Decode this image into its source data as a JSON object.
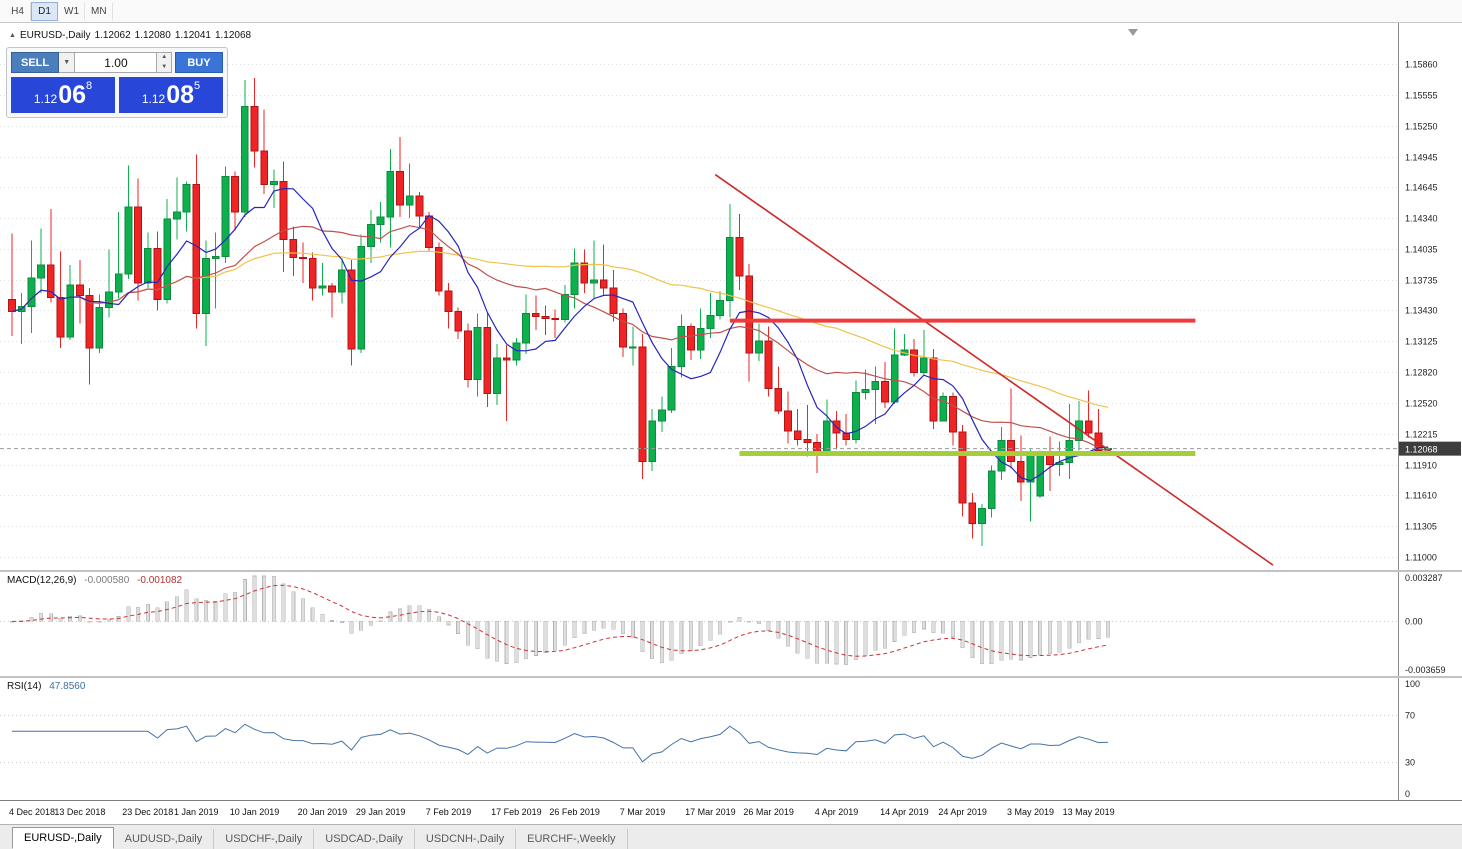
{
  "toolbar": {
    "timeframes": [
      {
        "label": "H4",
        "active": false
      },
      {
        "label": "D1",
        "active": true
      },
      {
        "label": "W1",
        "active": false
      },
      {
        "label": "MN",
        "active": false
      }
    ]
  },
  "icons": {
    "expand": "▲",
    "dropdown": "▼",
    "spin_up": "▲",
    "spin_down": "▼"
  },
  "chart_header": {
    "title": "EURUSD-,Daily",
    "open": "1.12062",
    "high": "1.12080",
    "low": "1.12041",
    "close": "1.12068"
  },
  "trade_panel": {
    "sell_label": "SELL",
    "buy_label": "BUY",
    "volume": "1.00",
    "sell_price": {
      "prefix": "1.12",
      "big": "06",
      "sup": "8"
    },
    "buy_price": {
      "prefix": "1.12",
      "big": "08",
      "sup": "5"
    }
  },
  "price_axis": {
    "current": "1.12068"
  },
  "macd": {
    "label": "MACD(12,26,9)",
    "main_value": "-0.000580",
    "signal_value": "-0.001082",
    "params": {
      "fast": 12,
      "slow": 26,
      "signal": 9
    },
    "axis": {
      "max": "0.003287",
      "zero": "0.00",
      "min": "-0.003659"
    },
    "histogram_color": "#dedede",
    "signal_color": "#cc3333"
  },
  "rsi": {
    "label": "RSI(14)",
    "value": "47.8560",
    "period": 14,
    "axis_labels": [
      "100",
      "70",
      "30",
      "0"
    ],
    "levels": [
      70,
      30
    ],
    "line_color": "#4572a7"
  },
  "bottom_tabs": [
    {
      "label": "EURUSD-,Daily",
      "active": true
    },
    {
      "label": "AUDUSD-,Daily",
      "active": false
    },
    {
      "label": "USDCHF-,Daily",
      "active": false
    },
    {
      "label": "USDCAD-,Daily",
      "active": false
    },
    {
      "label": "USDCNH-,Daily",
      "active": false
    },
    {
      "label": "EURCHF-,Weekly",
      "active": false
    }
  ],
  "ui_colors": {
    "sell_button": "#4a7ebd",
    "buy_button": "#3a74d6",
    "price_box": "#2847d8",
    "timeframe_active": "#dbe7f7",
    "badge": "#3d3d3d"
  },
  "chart_data": {
    "type": "candlestick",
    "symbol": "EURUSD-",
    "timeframe": "Daily",
    "current_price": 1.12068,
    "y_ticks": [
      "1.15860",
      "1.15555",
      "1.15250",
      "1.14945",
      "1.14645",
      "1.14340",
      "1.14035",
      "1.13735",
      "1.13430",
      "1.13125",
      "1.12820",
      "1.12520",
      "1.12215",
      "1.11910",
      "1.11610",
      "1.11305",
      "1.11000"
    ],
    "x_ticks": [
      {
        "label": "4 Dec 2018",
        "index": 0
      },
      {
        "label": "13 Dec 2018",
        "index": 7
      },
      {
        "label": "23 Dec 2018",
        "index": 14
      },
      {
        "label": "1 Jan 2019",
        "index": 19
      },
      {
        "label": "10 Jan 2019",
        "index": 25
      },
      {
        "label": "20 Jan 2019",
        "index": 32
      },
      {
        "label": "29 Jan 2019",
        "index": 38
      },
      {
        "label": "7 Feb 2019",
        "index": 45
      },
      {
        "label": "17 Feb 2019",
        "index": 52
      },
      {
        "label": "26 Feb 2019",
        "index": 58
      },
      {
        "label": "7 Mar 2019",
        "index": 65
      },
      {
        "label": "17 Mar 2019",
        "index": 72
      },
      {
        "label": "26 Mar 2019",
        "index": 78
      },
      {
        "label": "4 Apr 2019",
        "index": 85
      },
      {
        "label": "14 Apr 2019",
        "index": 92
      },
      {
        "label": "24 Apr 2019",
        "index": 98
      },
      {
        "label": "3 May 2019",
        "index": 105
      },
      {
        "label": "13 May 2019",
        "index": 111
      }
    ],
    "candles": [
      [
        1.1354,
        1.1419,
        1.1318,
        1.1342
      ],
      [
        1.1342,
        1.136,
        1.131,
        1.1347
      ],
      [
        1.1347,
        1.1412,
        1.1321,
        1.1375
      ],
      [
        1.1375,
        1.1424,
        1.136,
        1.1388
      ],
      [
        1.1388,
        1.1443,
        1.1351,
        1.1356
      ],
      [
        1.1356,
        1.1401,
        1.1306,
        1.1317
      ],
      [
        1.1317,
        1.1388,
        1.1314,
        1.1368
      ],
      [
        1.1368,
        1.1393,
        1.133,
        1.1358
      ],
      [
        1.1358,
        1.1365,
        1.127,
        1.1306
      ],
      [
        1.1306,
        1.1359,
        1.1301,
        1.1346
      ],
      [
        1.1346,
        1.1403,
        1.1336,
        1.1361
      ],
      [
        1.1361,
        1.144,
        1.1355,
        1.1379
      ],
      [
        1.1379,
        1.1486,
        1.1374,
        1.1445
      ],
      [
        1.1445,
        1.1473,
        1.1353,
        1.137
      ],
      [
        1.137,
        1.142,
        1.1365,
        1.1404
      ],
      [
        1.1404,
        1.1421,
        1.1343,
        1.1354
      ],
      [
        1.1354,
        1.1453,
        1.135,
        1.1433
      ],
      [
        1.1433,
        1.1474,
        1.1413,
        1.144
      ],
      [
        1.144,
        1.147,
        1.1421,
        1.1467
      ],
      [
        1.1467,
        1.1497,
        1.1325,
        1.134
      ],
      [
        1.134,
        1.1412,
        1.1308,
        1.1394
      ],
      [
        1.1394,
        1.142,
        1.1345,
        1.1396
      ],
      [
        1.1396,
        1.1485,
        1.139,
        1.1475
      ],
      [
        1.1475,
        1.148,
        1.1422,
        1.144
      ],
      [
        1.144,
        1.157,
        1.1435,
        1.1544
      ],
      [
        1.1544,
        1.1572,
        1.1484,
        1.15
      ],
      [
        1.15,
        1.1541,
        1.1458,
        1.1467
      ],
      [
        1.1467,
        1.1482,
        1.1444,
        1.147
      ],
      [
        1.147,
        1.149,
        1.1381,
        1.1413
      ],
      [
        1.1413,
        1.1426,
        1.1377,
        1.1395
      ],
      [
        1.1395,
        1.141,
        1.137,
        1.1394
      ],
      [
        1.1394,
        1.14,
        1.1353,
        1.1365
      ],
      [
        1.1365,
        1.139,
        1.1358,
        1.1367
      ],
      [
        1.1367,
        1.137,
        1.1336,
        1.1361
      ],
      [
        1.1361,
        1.1394,
        1.135,
        1.1383
      ],
      [
        1.1383,
        1.1393,
        1.1289,
        1.1305
      ],
      [
        1.1305,
        1.1418,
        1.1301,
        1.1406
      ],
      [
        1.1406,
        1.1442,
        1.139,
        1.1428
      ],
      [
        1.1428,
        1.145,
        1.141,
        1.1435
      ],
      [
        1.1435,
        1.1502,
        1.1405,
        1.148
      ],
      [
        1.148,
        1.1514,
        1.1435,
        1.1447
      ],
      [
        1.1447,
        1.1488,
        1.1434,
        1.1456
      ],
      [
        1.1456,
        1.146,
        1.1425,
        1.1436
      ],
      [
        1.1436,
        1.144,
        1.1402,
        1.1405
      ],
      [
        1.1405,
        1.141,
        1.1358,
        1.1362
      ],
      [
        1.1362,
        1.137,
        1.1325,
        1.1342
      ],
      [
        1.1342,
        1.1346,
        1.1315,
        1.1323
      ],
      [
        1.1323,
        1.133,
        1.1267,
        1.1275
      ],
      [
        1.1275,
        1.134,
        1.1258,
        1.1326
      ],
      [
        1.1326,
        1.1341,
        1.1248,
        1.1261
      ],
      [
        1.1261,
        1.131,
        1.125,
        1.1296
      ],
      [
        1.1296,
        1.1309,
        1.1234,
        1.1294
      ],
      [
        1.1294,
        1.1316,
        1.1289,
        1.1311
      ],
      [
        1.1311,
        1.1359,
        1.13,
        1.134
      ],
      [
        1.134,
        1.1358,
        1.1324,
        1.1337
      ],
      [
        1.1337,
        1.1348,
        1.1319,
        1.1335
      ],
      [
        1.1335,
        1.1344,
        1.1316,
        1.1334
      ],
      [
        1.1334,
        1.1368,
        1.1331,
        1.1359
      ],
      [
        1.1359,
        1.1404,
        1.1345,
        1.139
      ],
      [
        1.139,
        1.1403,
        1.136,
        1.137
      ],
      [
        1.137,
        1.1412,
        1.1355,
        1.1373
      ],
      [
        1.1373,
        1.1408,
        1.1358,
        1.1365
      ],
      [
        1.1365,
        1.1383,
        1.1332,
        1.134
      ],
      [
        1.134,
        1.1345,
        1.1297,
        1.1307
      ],
      [
        1.1307,
        1.1327,
        1.1289,
        1.1307
      ],
      [
        1.1307,
        1.132,
        1.1177,
        1.1194
      ],
      [
        1.1194,
        1.1246,
        1.1185,
        1.1234
      ],
      [
        1.1234,
        1.1258,
        1.1223,
        1.1245
      ],
      [
        1.1245,
        1.1306,
        1.1242,
        1.1288
      ],
      [
        1.1288,
        1.1339,
        1.1277,
        1.1327
      ],
      [
        1.1327,
        1.133,
        1.1294,
        1.1304
      ],
      [
        1.1304,
        1.1345,
        1.1295,
        1.1325
      ],
      [
        1.1325,
        1.136,
        1.1316,
        1.1338
      ],
      [
        1.1338,
        1.1362,
        1.1334,
        1.1353
      ],
      [
        1.1353,
        1.1448,
        1.1336,
        1.1415
      ],
      [
        1.1415,
        1.1438,
        1.1363,
        1.1377
      ],
      [
        1.1377,
        1.1389,
        1.1273,
        1.1301
      ],
      [
        1.1301,
        1.133,
        1.1293,
        1.1313
      ],
      [
        1.1313,
        1.1327,
        1.1258,
        1.1266
      ],
      [
        1.1266,
        1.1288,
        1.1241,
        1.1244
      ],
      [
        1.1244,
        1.1263,
        1.1212,
        1.1224
      ],
      [
        1.1224,
        1.1246,
        1.121,
        1.1216
      ],
      [
        1.1216,
        1.125,
        1.1199,
        1.1213
      ],
      [
        1.1213,
        1.1221,
        1.1183,
        1.1203
      ],
      [
        1.1203,
        1.1255,
        1.12,
        1.1234
      ],
      [
        1.1234,
        1.1244,
        1.1206,
        1.1222
      ],
      [
        1.1222,
        1.1241,
        1.121,
        1.1216
      ],
      [
        1.1216,
        1.1274,
        1.1212,
        1.1262
      ],
      [
        1.1262,
        1.1285,
        1.1255,
        1.1265
      ],
      [
        1.1265,
        1.1288,
        1.1231,
        1.1273
      ],
      [
        1.1273,
        1.1292,
        1.1247,
        1.1253
      ],
      [
        1.1253,
        1.1325,
        1.1251,
        1.1299
      ],
      [
        1.1299,
        1.132,
        1.1298,
        1.1304
      ],
      [
        1.1304,
        1.1315,
        1.1278,
        1.1282
      ],
      [
        1.1282,
        1.1324,
        1.128,
        1.1296
      ],
      [
        1.1296,
        1.1305,
        1.1226,
        1.1234
      ],
      [
        1.1234,
        1.1262,
        1.1234,
        1.1258
      ],
      [
        1.1258,
        1.1262,
        1.121,
        1.1223
      ],
      [
        1.1223,
        1.123,
        1.114,
        1.1153
      ],
      [
        1.1153,
        1.1163,
        1.1118,
        1.1133
      ],
      [
        1.1133,
        1.1152,
        1.1111,
        1.1148
      ],
      [
        1.1148,
        1.119,
        1.1139,
        1.1185
      ],
      [
        1.1185,
        1.1228,
        1.1176,
        1.1215
      ],
      [
        1.1215,
        1.1266,
        1.1187,
        1.1194
      ],
      [
        1.1194,
        1.122,
        1.1155,
        1.1174
      ],
      [
        1.1174,
        1.1206,
        1.1135,
        1.12
      ],
      [
        1.116,
        1.1205,
        1.1158,
        1.12
      ],
      [
        1.12,
        1.1219,
        1.1165,
        1.1191
      ],
      [
        1.1191,
        1.1214,
        1.118,
        1.1193
      ],
      [
        1.1193,
        1.1251,
        1.1177,
        1.1215
      ],
      [
        1.1215,
        1.1254,
        1.1205,
        1.1234
      ],
      [
        1.1234,
        1.1264,
        1.1218,
        1.1222
      ],
      [
        1.1222,
        1.1246,
        1.1201,
        1.1205
      ],
      [
        1.12062,
        1.1208,
        1.12041,
        1.12068
      ]
    ],
    "moving_averages": [
      {
        "period": 8,
        "color": "#2626bd"
      },
      {
        "period": 20,
        "color": "#c0504d"
      },
      {
        "period": 50,
        "color": "#f0c24b"
      }
    ],
    "trendline": {
      "from_index": 72.5,
      "from_price": 1.1477,
      "to_index": 130,
      "to_price": 1.1092,
      "color": "#d02828"
    },
    "resistance": {
      "price": 1.1333,
      "from_index": 74,
      "to_index": 122,
      "color": "#ef3b3b"
    },
    "support": {
      "price": 1.1202,
      "from_index": 75,
      "to_index": 122,
      "color": "#a6ce39"
    },
    "colors": {
      "bull": "#0eb04e",
      "bear": "#ef2424",
      "bull_border": "#0c8a3e",
      "bear_border": "#b01515",
      "grid": "#e0e0e0"
    }
  }
}
